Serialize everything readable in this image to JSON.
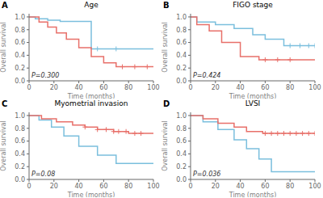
{
  "chart_data": [
    {
      "type": "line",
      "title": "Age",
      "xlabel": "Time (months)",
      "ylabel": "Overall survival",
      "annotations": [
        "A",
        "P=0.300"
      ],
      "xlim": [
        0,
        100
      ],
      "ylim": [
        0.0,
        1.05
      ],
      "xticks": [
        0,
        20,
        40,
        60,
        80,
        100
      ],
      "yticks": [
        {
          "value": 0.0,
          "label": "0.0"
        },
        0.2,
        0.4,
        0.6,
        0.8,
        {
          "value": 1.0,
          "label": "1.0"
        }
      ],
      "grid": false,
      "series": [
        {
          "type": "line",
          "color": "#7bbfdd",
          "x": [
            0,
            5,
            5,
            15,
            15,
            25,
            25,
            50,
            50,
            100
          ],
          "values": [
            1.0,
            1.0,
            0.97,
            0.97,
            0.95,
            0.95,
            0.93,
            0.93,
            0.5,
            0.5
          ]
        },
        {
          "type": "scatter",
          "marker": "+",
          "color": "#7bbfdd",
          "x": [
            55,
            70
          ],
          "values": [
            0.5,
            0.5
          ]
        },
        {
          "type": "line",
          "color": "#e8706a",
          "x": [
            0,
            8,
            8,
            15,
            15,
            22,
            22,
            30,
            30,
            40,
            40,
            50,
            50,
            60,
            60,
            70,
            70,
            100
          ],
          "values": [
            1.0,
            1.0,
            0.92,
            0.92,
            0.84,
            0.84,
            0.75,
            0.75,
            0.65,
            0.65,
            0.52,
            0.52,
            0.38,
            0.38,
            0.28,
            0.28,
            0.22,
            0.22
          ]
        },
        {
          "type": "scatter",
          "marker": "+",
          "color": "#e8706a",
          "x": [
            75,
            85,
            95
          ],
          "values": [
            0.22,
            0.22,
            0.22
          ]
        }
      ]
    },
    {
      "type": "line",
      "title": "FIGO stage",
      "xlabel": "Time (months)",
      "ylabel": "Overall survival",
      "annotations": [
        "B",
        "P=0.424"
      ],
      "xlim": [
        0,
        100
      ],
      "ylim": [
        0.0,
        1.05
      ],
      "xticks": [
        0,
        20,
        40,
        60,
        80,
        100
      ],
      "yticks": [
        {
          "value": 0.0,
          "label": "0.0"
        },
        0.2,
        0.4,
        0.6,
        0.8,
        {
          "value": 1.0,
          "label": "1.0"
        }
      ],
      "grid": false,
      "series": [
        {
          "type": "line",
          "color": "#7bbfdd",
          "x": [
            0,
            5,
            5,
            20,
            20,
            35,
            35,
            50,
            50,
            60,
            60,
            75,
            75,
            100
          ],
          "values": [
            1.0,
            1.0,
            0.92,
            0.92,
            0.88,
            0.88,
            0.82,
            0.82,
            0.72,
            0.72,
            0.65,
            0.65,
            0.55,
            0.55
          ]
        },
        {
          "type": "scatter",
          "marker": "+",
          "color": "#7bbfdd",
          "x": [
            80,
            88,
            95,
            100
          ],
          "values": [
            0.55,
            0.55,
            0.55,
            0.55
          ]
        },
        {
          "type": "line",
          "color": "#e8706a",
          "x": [
            0,
            5,
            5,
            15,
            15,
            25,
            25,
            40,
            40,
            55,
            55,
            100
          ],
          "values": [
            1.0,
            1.0,
            0.88,
            0.88,
            0.78,
            0.78,
            0.6,
            0.6,
            0.38,
            0.38,
            0.33,
            0.33
          ]
        },
        {
          "type": "scatter",
          "marker": "+",
          "color": "#e8706a",
          "x": [
            60,
            70,
            80
          ],
          "values": [
            0.33,
            0.33,
            0.33
          ]
        }
      ]
    },
    {
      "type": "line",
      "title": "Myometrial invasion",
      "xlabel": "Time (months)",
      "ylabel": "Overall survival",
      "annotations": [
        "C",
        "P=0.08"
      ],
      "xlim": [
        0,
        100
      ],
      "ylim": [
        0.0,
        1.05
      ],
      "xticks": [
        0,
        20,
        40,
        60,
        80,
        100
      ],
      "yticks": [
        {
          "value": 0.0,
          "label": "0.0"
        },
        0.2,
        0.4,
        0.6,
        0.8,
        {
          "value": 1.0,
          "label": "1.0"
        }
      ],
      "grid": false,
      "series": [
        {
          "type": "line",
          "color": "#7bbfdd",
          "x": [
            0,
            8,
            8,
            18,
            18,
            28,
            28,
            40,
            40,
            55,
            55,
            70,
            70,
            100
          ],
          "values": [
            1.0,
            1.0,
            0.93,
            0.93,
            0.82,
            0.82,
            0.68,
            0.68,
            0.52,
            0.52,
            0.38,
            0.38,
            0.25,
            0.25
          ]
        },
        {
          "type": "line",
          "color": "#e8706a",
          "x": [
            0,
            10,
            10,
            22,
            22,
            35,
            35,
            45,
            45,
            55,
            55,
            68,
            68,
            80,
            80,
            100
          ],
          "values": [
            1.0,
            1.0,
            0.95,
            0.95,
            0.9,
            0.9,
            0.85,
            0.85,
            0.82,
            0.82,
            0.78,
            0.78,
            0.75,
            0.75,
            0.72,
            0.72
          ]
        },
        {
          "type": "scatter",
          "marker": "+",
          "color": "#e8706a",
          "x": [
            45,
            55,
            62,
            68,
            72,
            78,
            85,
            90
          ],
          "values": [
            0.82,
            0.78,
            0.78,
            0.75,
            0.75,
            0.75,
            0.72,
            0.72
          ]
        }
      ]
    },
    {
      "type": "line",
      "title": "LVSI",
      "xlabel": "Time (months)",
      "ylabel": "Overall survival",
      "annotations": [
        "D",
        "P=0.036"
      ],
      "xlim": [
        0,
        100
      ],
      "ylim": [
        0.0,
        1.05
      ],
      "xticks": [
        0,
        20,
        40,
        60,
        80,
        100
      ],
      "yticks": [
        {
          "value": 0.0,
          "label": "0.0"
        },
        0.2,
        0.4,
        0.6,
        0.8,
        {
          "value": 1.0,
          "label": "1.0"
        }
      ],
      "grid": false,
      "series": [
        {
          "type": "line",
          "color": "#7bbfdd",
          "x": [
            0,
            10,
            10,
            22,
            22,
            35,
            35,
            45,
            45,
            55,
            55,
            65,
            65,
            100
          ],
          "values": [
            1.0,
            1.0,
            0.9,
            0.9,
            0.78,
            0.78,
            0.62,
            0.62,
            0.48,
            0.48,
            0.32,
            0.32,
            0.12,
            0.12
          ]
        },
        {
          "type": "line",
          "color": "#e8706a",
          "x": [
            0,
            10,
            10,
            22,
            22,
            35,
            35,
            45,
            45,
            58,
            58,
            100
          ],
          "values": [
            1.0,
            1.0,
            0.95,
            0.95,
            0.88,
            0.88,
            0.82,
            0.82,
            0.75,
            0.75,
            0.72,
            0.72
          ]
        },
        {
          "type": "scatter",
          "marker": "+",
          "color": "#e8706a",
          "x": [
            60,
            65,
            70,
            75,
            80,
            85,
            90,
            95,
            100
          ],
          "values": [
            0.72,
            0.72,
            0.72,
            0.72,
            0.72,
            0.72,
            0.72,
            0.72,
            0.72
          ]
        }
      ]
    }
  ]
}
